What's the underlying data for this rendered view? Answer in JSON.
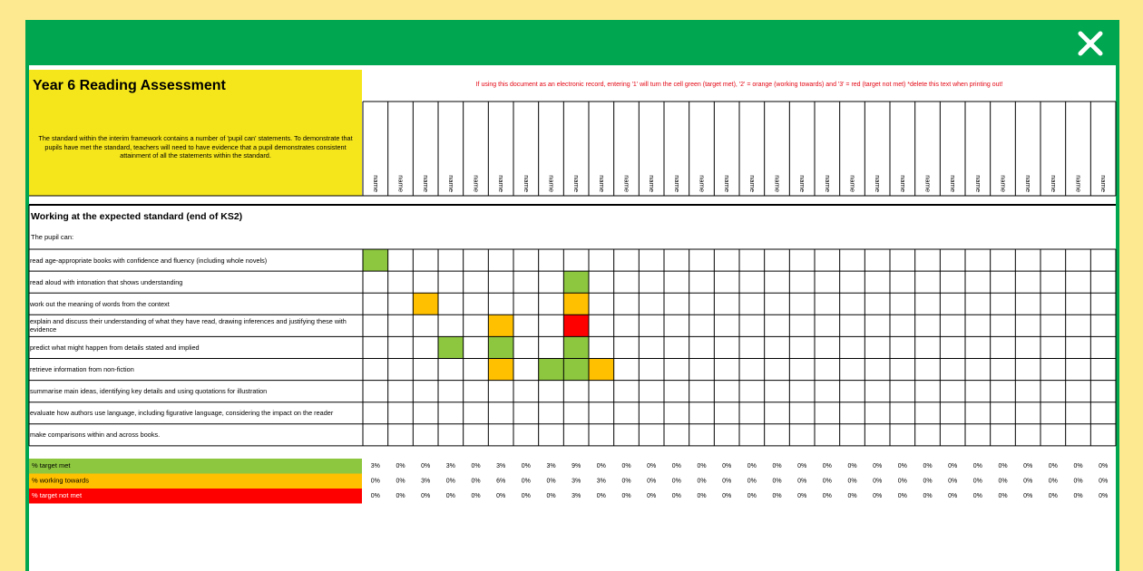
{
  "header": {
    "title": "Year 6 Reading Assessment",
    "description": "The standard within the interim framework contains a number of 'pupil can' statements. To demonstrate that pupils have met the standard, teachers will need to have evidence that a pupil demonstrates consistent attainment of all the statements within the standard.",
    "instruction": "If using this document as an electronic record, entering '1' will turn the cell green (target met), '2' = orange (working towards) and '3' = red (target not met) *delete this text when printing out!"
  },
  "names": [
    "name",
    "name",
    "name",
    "name",
    "name",
    "name",
    "name",
    "name",
    "name",
    "name",
    "name",
    "name",
    "name",
    "name",
    "name",
    "name",
    "name",
    "name",
    "name",
    "name",
    "name",
    "name",
    "name",
    "name",
    "name",
    "name",
    "name",
    "name",
    "name",
    "name"
  ],
  "section": {
    "title": "Working at the expected standard (end of KS2)",
    "intro": "The pupil can:"
  },
  "statements": [
    {
      "text": "read age-appropriate books with confidence and fluency (including whole novels)",
      "cells": [
        "#8dc63f",
        null,
        null,
        null,
        null,
        null,
        null,
        null,
        null,
        null,
        null,
        null,
        null,
        null,
        null,
        null,
        null,
        null,
        null,
        null,
        null,
        null,
        null,
        null,
        null,
        null,
        null,
        null,
        null,
        null
      ]
    },
    {
      "text": "read aloud with intonation that shows understanding",
      "cells": [
        null,
        null,
        null,
        null,
        null,
        null,
        null,
        null,
        "#8dc63f",
        null,
        null,
        null,
        null,
        null,
        null,
        null,
        null,
        null,
        null,
        null,
        null,
        null,
        null,
        null,
        null,
        null,
        null,
        null,
        null,
        null
      ]
    },
    {
      "text": "work out the meaning of words from the context",
      "cells": [
        null,
        null,
        "#ffc000",
        null,
        null,
        null,
        null,
        null,
        "#ffc000",
        null,
        null,
        null,
        null,
        null,
        null,
        null,
        null,
        null,
        null,
        null,
        null,
        null,
        null,
        null,
        null,
        null,
        null,
        null,
        null,
        null
      ]
    },
    {
      "text": "explain and discuss their understanding of what they have read, drawing inferences and justifying these with evidence",
      "cells": [
        null,
        null,
        null,
        null,
        null,
        "#ffc000",
        null,
        null,
        "#ff0000",
        null,
        null,
        null,
        null,
        null,
        null,
        null,
        null,
        null,
        null,
        null,
        null,
        null,
        null,
        null,
        null,
        null,
        null,
        null,
        null,
        null
      ]
    },
    {
      "text": "predict what might happen from details stated and implied",
      "cells": [
        null,
        null,
        null,
        "#8dc63f",
        null,
        "#8dc63f",
        null,
        null,
        "#8dc63f",
        null,
        null,
        null,
        null,
        null,
        null,
        null,
        null,
        null,
        null,
        null,
        null,
        null,
        null,
        null,
        null,
        null,
        null,
        null,
        null,
        null
      ]
    },
    {
      "text": "retrieve information from non-fiction",
      "cells": [
        null,
        null,
        null,
        null,
        null,
        "#ffc000",
        null,
        "#8dc63f",
        "#8dc63f",
        "#ffc000",
        null,
        null,
        null,
        null,
        null,
        null,
        null,
        null,
        null,
        null,
        null,
        null,
        null,
        null,
        null,
        null,
        null,
        null,
        null,
        null
      ]
    },
    {
      "text": "summarise main ideas, identifying key details and using quotations for illustration",
      "cells": [
        null,
        null,
        null,
        null,
        null,
        null,
        null,
        null,
        null,
        null,
        null,
        null,
        null,
        null,
        null,
        null,
        null,
        null,
        null,
        null,
        null,
        null,
        null,
        null,
        null,
        null,
        null,
        null,
        null,
        null
      ]
    },
    {
      "text": "evaluate how authors use language, including figurative language, considering the impact on the reader",
      "cells": [
        null,
        null,
        null,
        null,
        null,
        null,
        null,
        null,
        null,
        null,
        null,
        null,
        null,
        null,
        null,
        null,
        null,
        null,
        null,
        null,
        null,
        null,
        null,
        null,
        null,
        null,
        null,
        null,
        null,
        null
      ]
    },
    {
      "text": "make comparisons within and across books.",
      "cells": [
        null,
        null,
        null,
        null,
        null,
        null,
        null,
        null,
        null,
        null,
        null,
        null,
        null,
        null,
        null,
        null,
        null,
        null,
        null,
        null,
        null,
        null,
        null,
        null,
        null,
        null,
        null,
        null,
        null,
        null
      ]
    }
  ],
  "summary": [
    {
      "label": "% target met",
      "color": "#8dc63f",
      "values": [
        "3%",
        "0%",
        "0%",
        "3%",
        "0%",
        "3%",
        "0%",
        "3%",
        "9%",
        "0%",
        "0%",
        "0%",
        "0%",
        "0%",
        "0%",
        "0%",
        "0%",
        "0%",
        "0%",
        "0%",
        "0%",
        "0%",
        "0%",
        "0%",
        "0%",
        "0%",
        "0%",
        "0%",
        "0%",
        "0%"
      ]
    },
    {
      "label": "% working towards",
      "color": "#ffc000",
      "values": [
        "0%",
        "0%",
        "3%",
        "0%",
        "0%",
        "6%",
        "0%",
        "0%",
        "3%",
        "3%",
        "0%",
        "0%",
        "0%",
        "0%",
        "0%",
        "0%",
        "0%",
        "0%",
        "0%",
        "0%",
        "0%",
        "0%",
        "0%",
        "0%",
        "0%",
        "0%",
        "0%",
        "0%",
        "0%",
        "0%"
      ]
    },
    {
      "label": "% target not met",
      "color": "#ff0000",
      "values": [
        "0%",
        "0%",
        "0%",
        "0%",
        "0%",
        "0%",
        "0%",
        "0%",
        "3%",
        "0%",
        "0%",
        "0%",
        "0%",
        "0%",
        "0%",
        "0%",
        "0%",
        "0%",
        "0%",
        "0%",
        "0%",
        "0%",
        "0%",
        "0%",
        "0%",
        "0%",
        "0%",
        "0%",
        "0%",
        "0%"
      ]
    }
  ]
}
